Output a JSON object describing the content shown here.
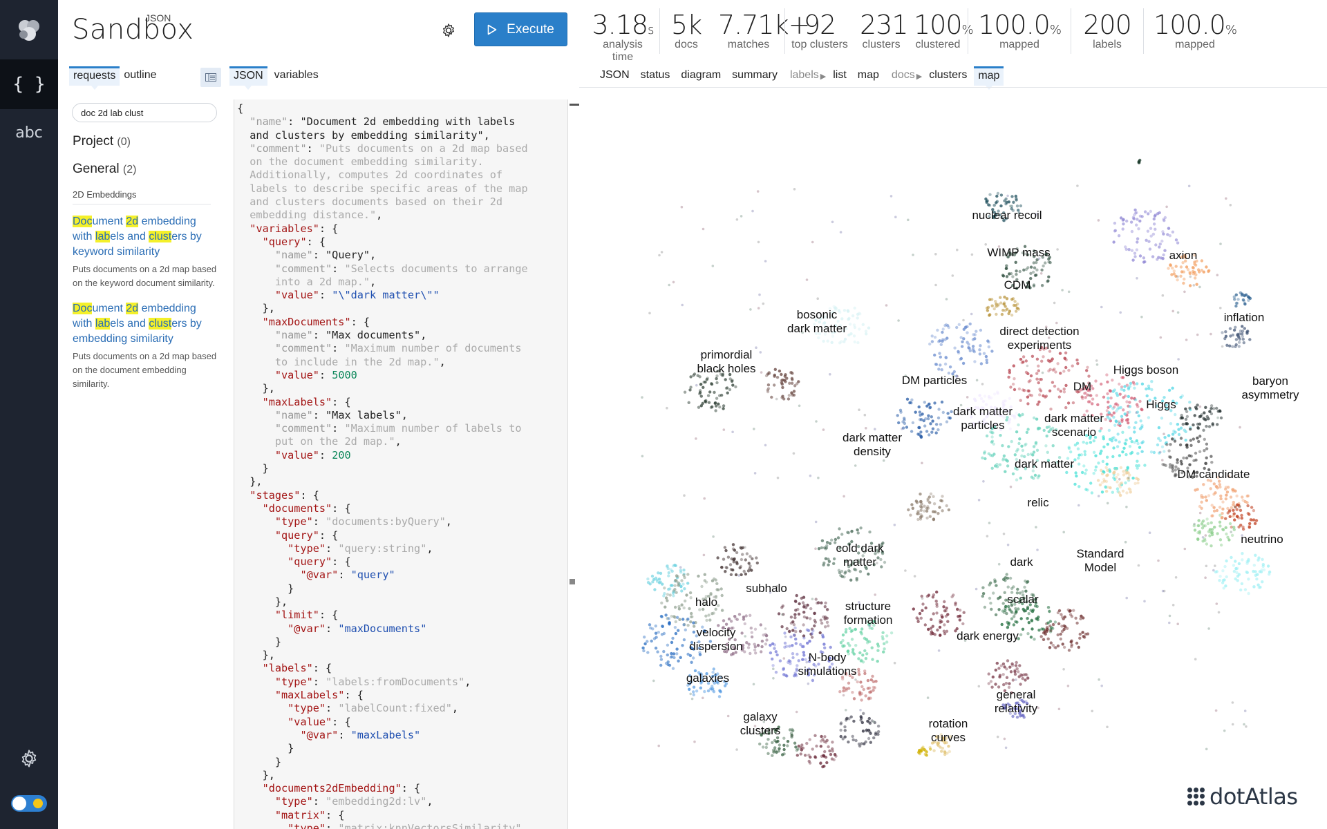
{
  "rail": {
    "braces_label": "{ }",
    "abc_label": "abc"
  },
  "brand": {
    "tag": "JSON",
    "name": "Sandbox"
  },
  "execute_label": "Execute",
  "left_tabs": [
    "requests",
    "outline"
  ],
  "middle_tabs": [
    "JSON",
    "variables"
  ],
  "search_value": "doc 2d lab clust",
  "groups": [
    {
      "label": "Project",
      "count": "(0)"
    },
    {
      "label": "General",
      "count": "(2)"
    }
  ],
  "section_title": "2D Embeddings",
  "requests": [
    {
      "title_html": "<mark>Doc</mark>ument <mark>2d</mark> embedding with <mark>lab</mark>els and <mark>clust</mark>ers by keyword similarity",
      "desc": "Puts documents on a 2d map based on the keyword document similarity."
    },
    {
      "title_html": "<mark>Doc</mark>ument <mark>2d</mark> embedding with <mark>lab</mark>els and <mark>clust</mark>ers by embedding similarity",
      "desc": "Puts documents on a 2d map based on the document embedding similarity."
    }
  ],
  "stats": [
    {
      "value": "3.18",
      "unit": "s",
      "label": "analysis time"
    },
    {
      "value": "5k",
      "unit": "",
      "label": "docs"
    },
    {
      "value": "7.71k+",
      "unit": "",
      "label": "matches"
    },
    {
      "value": "92",
      "unit": "",
      "label": "top clusters"
    },
    {
      "value": "231",
      "unit": "",
      "label": "clusters"
    },
    {
      "value": "100",
      "unit": "%",
      "label": "clustered"
    },
    {
      "value": "100.0",
      "unit": "%",
      "label": "mapped"
    },
    {
      "value": "200",
      "unit": "",
      "label": "labels"
    },
    {
      "value": "100.0",
      "unit": "%",
      "label": "mapped"
    }
  ],
  "right_tabs": {
    "main": [
      "JSON",
      "status",
      "diagram",
      "summary"
    ],
    "labels_group": "labels",
    "labels_tabs": [
      "list",
      "map"
    ],
    "docs_group": "docs",
    "docs_tabs": [
      "clusters",
      "map"
    ],
    "active": "map"
  },
  "map_labels": [
    {
      "text": "nuclear recoil"
    },
    {
      "text": "WIMP mass"
    },
    {
      "text": "axion"
    },
    {
      "text": "CDM"
    },
    {
      "text": "inflation"
    },
    {
      "text": "bosonic\ndark matter"
    },
    {
      "text": "direct detection\nexperiments"
    },
    {
      "text": "primordial\nblack holes"
    },
    {
      "text": "Higgs boson"
    },
    {
      "text": "baryon\nasymmetry"
    },
    {
      "text": "DM particles"
    },
    {
      "text": "DM"
    },
    {
      "text": "Higgs"
    },
    {
      "text": "dark matter\nparticles"
    },
    {
      "text": "dark matter\nscenario"
    },
    {
      "text": "dark matter\ndensity"
    },
    {
      "text": "dark matter"
    },
    {
      "text": "DM candidate"
    },
    {
      "text": "relic"
    },
    {
      "text": "neutrino"
    },
    {
      "text": "cold dark\nmatter"
    },
    {
      "text": "Standard\nModel"
    },
    {
      "text": "dark"
    },
    {
      "text": "subhalo"
    },
    {
      "text": "halo"
    },
    {
      "text": "scalar"
    },
    {
      "text": "structure\nformation"
    },
    {
      "text": "velocity\ndispersion"
    },
    {
      "text": "dark energy"
    },
    {
      "text": "N-body\nsimulations"
    },
    {
      "text": "galaxies"
    },
    {
      "text": "general\nrelativity"
    },
    {
      "text": "galaxy\nclusters"
    },
    {
      "text": "rotation\ncurves"
    }
  ],
  "footer_brand": "dotAtlas"
}
